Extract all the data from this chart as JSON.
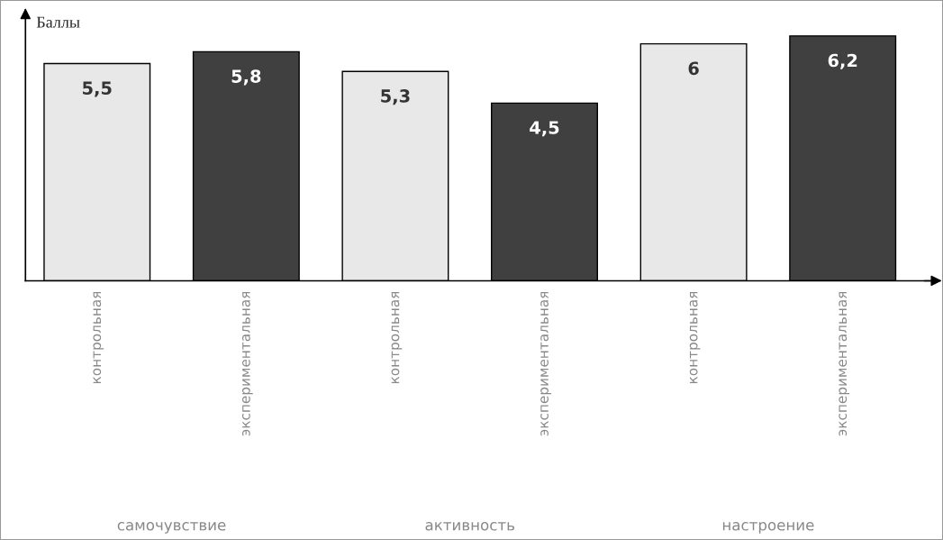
{
  "chart_data": {
    "type": "bar",
    "ylabel": "Баллы",
    "categories": [
      "контрольная",
      "экспериментальная",
      "контрольная",
      "экспериментальная",
      "контрольная",
      "экспериментальная"
    ],
    "values": [
      5.5,
      5.8,
      5.3,
      4.5,
      6,
      6.2
    ],
    "value_labels": [
      "5,5",
      "5,8",
      "5,3",
      "4,5",
      "6",
      "6,2"
    ],
    "colors": [
      "#e8e8e8",
      "#404040",
      "#e8e8e8",
      "#404040",
      "#e8e8e8",
      "#404040"
    ],
    "annotations": [
      "самочувствие",
      "активность",
      "настроение"
    ],
    "ylim": [
      0,
      6.7
    ],
    "tick_labels": "x",
    "grid": false
  }
}
